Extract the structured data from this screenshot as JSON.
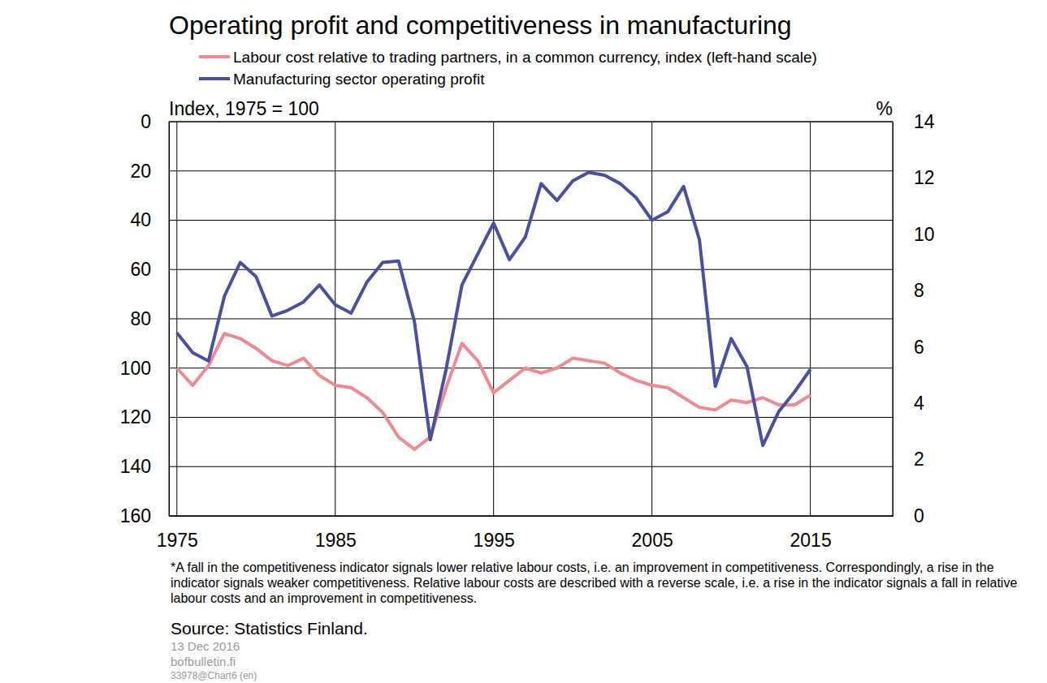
{
  "chart_data": {
    "type": "line",
    "title": "Operating profit and competitiveness in manufacturing",
    "ylabel": "Index, 1975 = 100",
    "y2label": "%",
    "x": [
      1975,
      1976,
      1977,
      1978,
      1979,
      1980,
      1981,
      1982,
      1983,
      1984,
      1985,
      1986,
      1987,
      1988,
      1989,
      1990,
      1991,
      1992,
      1993,
      1994,
      1995,
      1996,
      1997,
      1998,
      1999,
      2000,
      2001,
      2002,
      2003,
      2004,
      2005,
      2006,
      2007,
      2008,
      2009,
      2010,
      2011,
      2012,
      2013,
      2014,
      2015
    ],
    "series": [
      {
        "name": "Labour cost relative to trading partners, in a common currency, index (left-hand scale)",
        "color": "#ef8a92",
        "values": [
          100,
          107,
          99,
          86,
          88,
          92,
          97,
          99,
          96,
          103,
          107,
          108,
          112,
          118,
          128,
          133,
          128,
          108,
          90,
          97,
          110,
          105,
          100,
          102,
          100,
          96,
          97,
          98,
          102,
          105,
          107,
          108,
          112,
          116,
          117,
          113,
          114,
          112,
          115,
          115,
          111
        ]
      },
      {
        "name": "Manufacturing sector operating profit",
        "color": "#4b4f9f",
        "axis": "y2",
        "values": [
          6.5,
          5.8,
          5.5,
          7.8,
          9.0,
          8.5,
          7.1,
          7.3,
          7.6,
          8.2,
          7.5,
          7.2,
          8.3,
          9.0,
          9.05,
          6.9,
          2.7,
          5.2,
          8.2,
          9.3,
          10.4,
          9.1,
          9.9,
          11.8,
          11.2,
          11.9,
          12.2,
          12.1,
          11.8,
          11.3,
          10.5,
          10.8,
          11.7,
          9.8,
          4.6,
          6.3,
          5.3,
          2.5,
          3.7,
          4.4,
          5.2
        ]
      }
    ],
    "xlim": [
      1974.5,
      2020.2
    ],
    "xticks": [
      1975,
      1985,
      1995,
      2005,
      2015
    ],
    "ylim": [
      160,
      0
    ],
    "yticks": [
      0,
      20,
      40,
      60,
      80,
      100,
      120,
      140,
      160
    ],
    "y2lim": [
      0,
      14
    ],
    "y2ticks": [
      0,
      2,
      4,
      6,
      8,
      10,
      12,
      14
    ],
    "grid": true,
    "legend": "top-left",
    "annotations": [
      "*A fall in the competitiveness indicator signals lower relative labour costs, i.e. an improvement in competitiveness. Correspondingly, a rise in the indicator signals weaker competitiveness. Relative labour costs are described with a reverse scale, i.e. a rise in the indicator signals a fall in relative labour costs and an improvement in competitiveness.",
      "Source: Statistics Finland.",
      "13 Dec 2016",
      "bofbulletin.fi",
      "33978@Chart6 (en)"
    ]
  }
}
